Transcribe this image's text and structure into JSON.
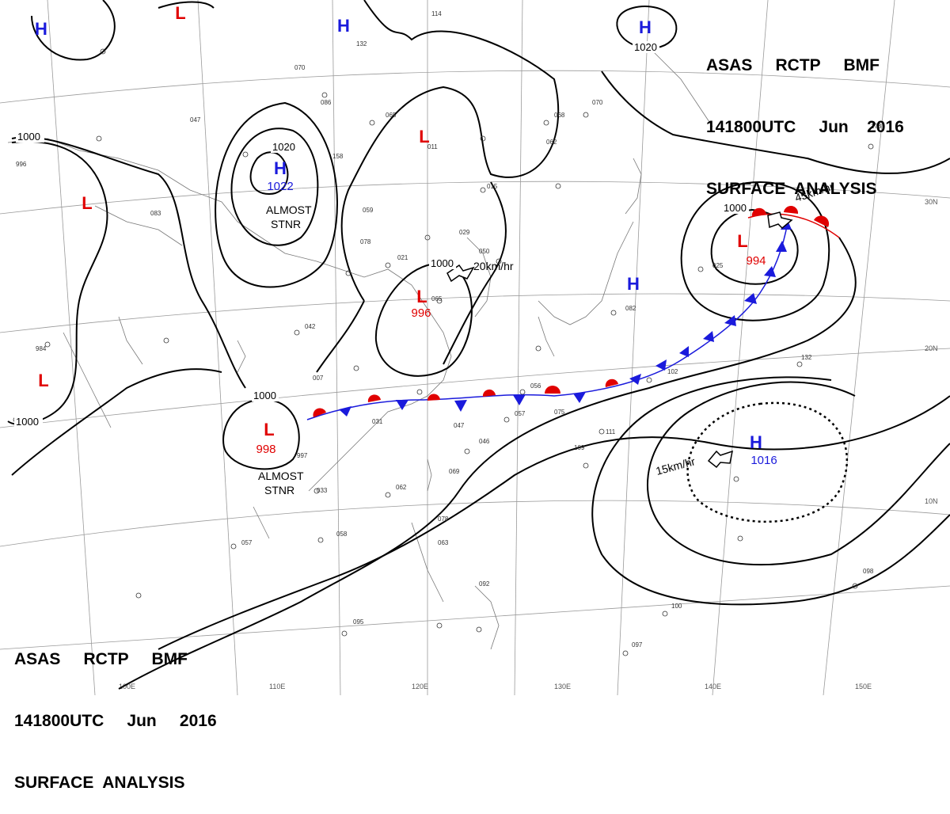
{
  "header_top": {
    "line1": "ASAS     RCTP     BMF",
    "line2": "141800UTC     Jun    2016",
    "line3": "SURFACE  ANALYSIS"
  },
  "header_bottom": {
    "line1": "ASAS     RCTP     BMF",
    "line2": "141800UTC     Jun     2016",
    "line3": "SURFACE  ANALYSIS"
  },
  "colors": {
    "high": "#1a1adc",
    "low": "#e00000",
    "isobar": "#000000",
    "grid": "#9a9a9a",
    "coast": "#777777",
    "warm_front": "#e00000",
    "cold_front": "#1a1adc"
  },
  "grid_labels": {
    "lat": [
      "30N",
      "20N",
      "10N"
    ],
    "lon": [
      "100E",
      "110E",
      "120E",
      "130E",
      "140E",
      "150E"
    ]
  },
  "pressure_systems": [
    {
      "type": "H",
      "value": ""
    },
    {
      "type": "L",
      "value": ""
    },
    {
      "type": "H",
      "value": ""
    },
    {
      "type": "H",
      "value": "1022"
    },
    {
      "type": "L",
      "value": ""
    },
    {
      "type": "L",
      "value": ""
    },
    {
      "type": "L",
      "value": "996"
    },
    {
      "type": "L",
      "value": ""
    },
    {
      "type": "L",
      "value": "998"
    },
    {
      "type": "H",
      "value": ""
    },
    {
      "type": "L",
      "value": "994"
    },
    {
      "type": "H",
      "value": "1016"
    },
    {
      "type": "H",
      "value": ""
    }
  ],
  "isobar_labels": [
    "1000",
    "1020",
    "1000",
    "1000",
    "1000",
    "1020",
    "1000"
  ],
  "annotations": [
    {
      "text": "ALMOST"
    },
    {
      "text": "STNR"
    },
    {
      "text": "ALMOST"
    },
    {
      "text": "STNR"
    },
    {
      "text": "20km/hr"
    },
    {
      "text": "45km/hr"
    },
    {
      "text": "15km/hr"
    }
  ],
  "station_samples": [
    "114",
    "132",
    "070",
    "086",
    "065",
    "011",
    "062",
    "068",
    "070",
    "015",
    "158",
    "059",
    "029",
    "078",
    "021",
    "050",
    "065",
    "042",
    "031",
    "007",
    "056",
    "057",
    "075",
    "046",
    "047",
    "062",
    "069",
    "111",
    "109",
    "082",
    "102",
    "132",
    "173",
    "057",
    "058",
    "098",
    "095",
    "100",
    "097",
    "092",
    "078",
    "063",
    "025",
    "984",
    "996",
    "997",
    "033",
    "047",
    "083"
  ]
}
